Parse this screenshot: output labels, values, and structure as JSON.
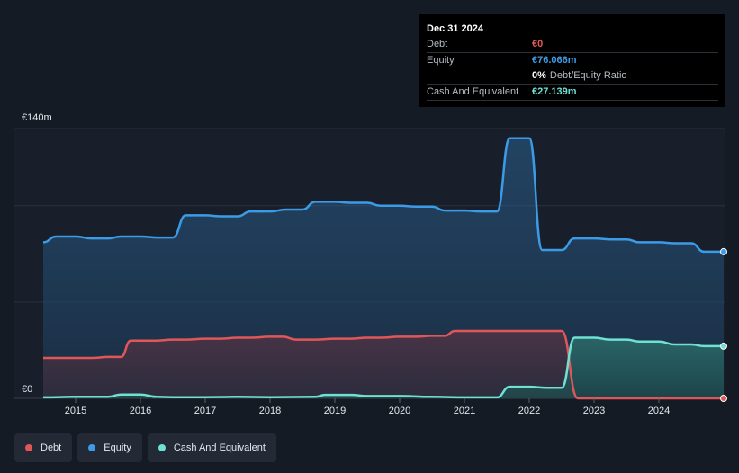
{
  "tooltip": {
    "date": "Dec 31 2024",
    "debt_label": "Debt",
    "debt_value": "€0",
    "equity_label": "Equity",
    "equity_value": "€76.066m",
    "ratio_value": "0%",
    "ratio_label": "Debt/Equity Ratio",
    "cash_label": "Cash And Equivalent",
    "cash_value": "€27.139m"
  },
  "legend": {
    "debt": "Debt",
    "equity": "Equity",
    "cash": "Cash And Equivalent"
  },
  "colors": {
    "debt": "#e15759",
    "equity": "#3c9be6",
    "cash": "#6fe0d2",
    "background": "#151b24"
  },
  "chart_data": {
    "type": "area",
    "ylim": [
      0,
      140
    ],
    "yticks": [
      {
        "value": 140,
        "label": "€140m"
      },
      {
        "value": 0,
        "label": "€0"
      }
    ],
    "gridlines": [
      140,
      100,
      50
    ],
    "xlim": [
      2014.5,
      2025.0
    ],
    "xticks": [
      {
        "value": 2015,
        "label": "2015"
      },
      {
        "value": 2016,
        "label": "2016"
      },
      {
        "value": 2017,
        "label": "2017"
      },
      {
        "value": 2018,
        "label": "2018"
      },
      {
        "value": 2019,
        "label": "2019"
      },
      {
        "value": 2020,
        "label": "2020"
      },
      {
        "value": 2021,
        "label": "2021"
      },
      {
        "value": 2022,
        "label": "2022"
      },
      {
        "value": 2023,
        "label": "2023"
      },
      {
        "value": 2024,
        "label": "2024"
      }
    ],
    "series": [
      {
        "name": "Equity",
        "key": "equity",
        "points": [
          [
            2014.5,
            81
          ],
          [
            2014.7,
            84
          ],
          [
            2015.0,
            84
          ],
          [
            2015.25,
            83
          ],
          [
            2015.5,
            83
          ],
          [
            2015.7,
            84
          ],
          [
            2016.0,
            84
          ],
          [
            2016.25,
            83.5
          ],
          [
            2016.5,
            83.5
          ],
          [
            2016.7,
            95
          ],
          [
            2017.0,
            95
          ],
          [
            2017.25,
            94.5
          ],
          [
            2017.5,
            94.5
          ],
          [
            2017.7,
            97
          ],
          [
            2018.0,
            97
          ],
          [
            2018.25,
            98
          ],
          [
            2018.5,
            98
          ],
          [
            2018.7,
            102
          ],
          [
            2019.0,
            102
          ],
          [
            2019.25,
            101.5
          ],
          [
            2019.5,
            101.5
          ],
          [
            2019.7,
            100
          ],
          [
            2020.0,
            100
          ],
          [
            2020.25,
            99.5
          ],
          [
            2020.5,
            99.5
          ],
          [
            2020.7,
            97.5
          ],
          [
            2021.0,
            97.5
          ],
          [
            2021.25,
            97
          ],
          [
            2021.5,
            97
          ],
          [
            2021.7,
            135
          ],
          [
            2022.0,
            135
          ],
          [
            2022.2,
            77
          ],
          [
            2022.5,
            77
          ],
          [
            2022.7,
            83
          ],
          [
            2023.0,
            83
          ],
          [
            2023.25,
            82.5
          ],
          [
            2023.5,
            82.5
          ],
          [
            2023.7,
            81
          ],
          [
            2024.0,
            81
          ],
          [
            2024.25,
            80.5
          ],
          [
            2024.5,
            80.5
          ],
          [
            2024.7,
            76.1
          ],
          [
            2025.0,
            76.1
          ]
        ]
      },
      {
        "name": "Debt",
        "key": "debt",
        "points": [
          [
            2014.5,
            21
          ],
          [
            2015.0,
            21
          ],
          [
            2015.25,
            21
          ],
          [
            2015.5,
            21.5
          ],
          [
            2015.7,
            21.5
          ],
          [
            2015.85,
            30
          ],
          [
            2016.25,
            30
          ],
          [
            2016.5,
            30.5
          ],
          [
            2016.7,
            30.5
          ],
          [
            2017.0,
            31
          ],
          [
            2017.25,
            31
          ],
          [
            2017.5,
            31.5
          ],
          [
            2017.7,
            31.5
          ],
          [
            2018.0,
            32
          ],
          [
            2018.2,
            32
          ],
          [
            2018.4,
            30.5
          ],
          [
            2018.7,
            30.5
          ],
          [
            2019.0,
            31
          ],
          [
            2019.25,
            31
          ],
          [
            2019.5,
            31.5
          ],
          [
            2019.7,
            31.5
          ],
          [
            2020.0,
            32
          ],
          [
            2020.25,
            32
          ],
          [
            2020.5,
            32.5
          ],
          [
            2020.7,
            32.5
          ],
          [
            2020.85,
            35
          ],
          [
            2022.5,
            35
          ],
          [
            2022.75,
            0
          ],
          [
            2025.0,
            0
          ]
        ]
      },
      {
        "name": "Cash And Equivalent",
        "key": "cash",
        "points": [
          [
            2014.5,
            0.5
          ],
          [
            2015.0,
            0.8
          ],
          [
            2015.5,
            0.8
          ],
          [
            2015.7,
            2
          ],
          [
            2016.0,
            2
          ],
          [
            2016.25,
            0.8
          ],
          [
            2016.5,
            0.6
          ],
          [
            2017.0,
            0.6
          ],
          [
            2017.5,
            0.8
          ],
          [
            2018.0,
            0.6
          ],
          [
            2018.7,
            0.8
          ],
          [
            2018.85,
            1.8
          ],
          [
            2019.25,
            1.8
          ],
          [
            2019.5,
            1.2
          ],
          [
            2020.0,
            1.2
          ],
          [
            2020.5,
            0.8
          ],
          [
            2021.0,
            0.5
          ],
          [
            2021.5,
            0.5
          ],
          [
            2021.7,
            6
          ],
          [
            2022.0,
            6
          ],
          [
            2022.25,
            5.5
          ],
          [
            2022.5,
            5.5
          ],
          [
            2022.7,
            31.5
          ],
          [
            2023.0,
            31.5
          ],
          [
            2023.25,
            30.5
          ],
          [
            2023.5,
            30.5
          ],
          [
            2023.7,
            29.5
          ],
          [
            2024.0,
            29.5
          ],
          [
            2024.25,
            28
          ],
          [
            2024.5,
            28
          ],
          [
            2024.7,
            27.1
          ],
          [
            2025.0,
            27.1
          ]
        ]
      }
    ]
  }
}
